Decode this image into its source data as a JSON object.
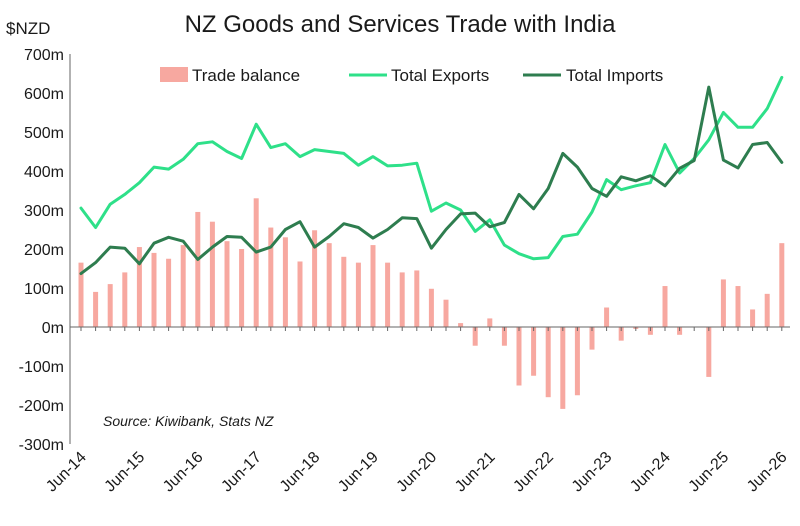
{
  "chart_data": {
    "type": "bar",
    "title": "NZ Goods and Services Trade with India",
    "ylabel": "$NZD",
    "source": "Source: Kiwibank, Stats NZ",
    "ylim": [
      -300,
      700
    ],
    "yticks": [
      -300,
      -200,
      -100,
      0,
      100,
      200,
      300,
      400,
      500,
      600,
      700
    ],
    "ytick_labels": [
      "-300m",
      "-200m",
      "-100m",
      "0m",
      "100m",
      "200m",
      "300m",
      "400m",
      "500m",
      "600m",
      "700m"
    ],
    "xtick_labels": [
      "Jun-14",
      "Jun-15",
      "Jun-16",
      "Jun-17",
      "Jun-18",
      "Jun-19",
      "Jun-20",
      "Jun-21",
      "Jun-22",
      "Jun-23",
      "Jun-24",
      "Jun-25",
      "Jun-26"
    ],
    "legend_position": "top",
    "grid": false,
    "series": [
      {
        "name": "Trade balance",
        "kind": "bar",
        "color": "#f7a8a0",
        "values": [
          165,
          90,
          110,
          140,
          205,
          190,
          175,
          210,
          295,
          270,
          220,
          200,
          330,
          255,
          230,
          168,
          248,
          215,
          180,
          165,
          210,
          165,
          140,
          145,
          98,
          70,
          10,
          -48,
          22,
          -48,
          -150,
          -125,
          -180,
          -210,
          -175,
          -58,
          50,
          -35,
          -5,
          -20,
          105,
          -20,
          0,
          -128,
          122,
          105,
          45,
          85,
          215
        ]
      },
      {
        "name": "Total Exports",
        "kind": "line",
        "color": "#2ee089",
        "values": [
          305,
          255,
          315,
          340,
          370,
          410,
          405,
          430,
          470,
          475,
          450,
          432,
          520,
          460,
          470,
          437,
          455,
          450,
          445,
          415,
          437,
          413,
          415,
          420,
          297,
          318,
          300,
          245,
          275,
          210,
          188,
          175,
          178,
          232,
          238,
          295,
          378,
          352,
          362,
          370,
          468,
          395,
          432,
          480,
          550,
          512,
          512,
          560,
          640
        ]
      },
      {
        "name": "Total Imports",
        "kind": "line",
        "color": "#2e7d4f",
        "values": [
          137,
          165,
          205,
          202,
          162,
          215,
          230,
          220,
          173,
          205,
          232,
          230,
          192,
          205,
          250,
          270,
          205,
          232,
          265,
          255,
          228,
          250,
          280,
          278,
          202,
          250,
          290,
          292,
          257,
          268,
          340,
          303,
          355,
          445,
          410,
          355,
          335,
          385,
          375,
          388,
          362,
          407,
          427,
          615,
          428,
          408,
          468,
          473,
          422
        ]
      }
    ]
  }
}
